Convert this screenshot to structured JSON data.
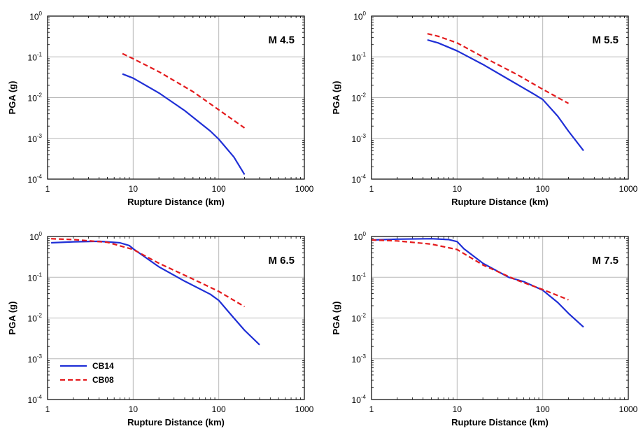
{
  "chart_data": [
    {
      "type": "line",
      "annotation": "M 4.5",
      "xlabel": "Rupture Distance (km)",
      "ylabel": "PGA (g)",
      "xscale": "log",
      "yscale": "log",
      "xlim": [
        1,
        1000
      ],
      "ylim": [
        0.0001,
        1
      ],
      "xticks": [
        "1",
        "10",
        "100",
        "1000"
      ],
      "yticks": [
        {
          "base": "10",
          "exp": "0"
        },
        {
          "base": "10",
          "exp": "-1"
        },
        {
          "base": "10",
          "exp": "-2"
        },
        {
          "base": "10",
          "exp": "-3"
        },
        {
          "base": "10",
          "exp": "-4"
        }
      ],
      "grid": true,
      "series": [
        {
          "name": "CB14",
          "color": "#1f2fd6",
          "style": "solid",
          "points": [
            [
              7.5,
              0.038
            ],
            [
              10,
              0.03
            ],
            [
              20,
              0.013
            ],
            [
              40,
              0.0048
            ],
            [
              80,
              0.0015
            ],
            [
              100,
              0.00095
            ],
            [
              150,
              0.00035
            ],
            [
              200,
              0.00013
            ]
          ]
        },
        {
          "name": "CB08",
          "color": "#e41a1c",
          "style": "dashed",
          "points": [
            [
              7.5,
              0.12
            ],
            [
              10,
              0.09
            ],
            [
              20,
              0.043
            ],
            [
              50,
              0.014
            ],
            [
              100,
              0.005
            ],
            [
              200,
              0.0018
            ]
          ]
        }
      ]
    },
    {
      "type": "line",
      "annotation": "M 5.5",
      "xlabel": "Rupture Distance (km)",
      "ylabel": "PGA (g)",
      "xscale": "log",
      "yscale": "log",
      "xlim": [
        1,
        1000
      ],
      "ylim": [
        0.0001,
        1
      ],
      "xticks": [
        "1",
        "10",
        "100",
        "1000"
      ],
      "yticks": [
        {
          "base": "10",
          "exp": "0"
        },
        {
          "base": "10",
          "exp": "-1"
        },
        {
          "base": "10",
          "exp": "-2"
        },
        {
          "base": "10",
          "exp": "-3"
        },
        {
          "base": "10",
          "exp": "-4"
        }
      ],
      "grid": true,
      "series": [
        {
          "name": "CB14",
          "color": "#1f2fd6",
          "style": "solid",
          "points": [
            [
              4.5,
              0.26
            ],
            [
              6,
              0.22
            ],
            [
              10,
              0.14
            ],
            [
              20,
              0.065
            ],
            [
              40,
              0.028
            ],
            [
              80,
              0.012
            ],
            [
              100,
              0.009
            ],
            [
              150,
              0.0035
            ],
            [
              200,
              0.0015
            ],
            [
              300,
              0.0005
            ]
          ]
        },
        {
          "name": "CB08",
          "color": "#e41a1c",
          "style": "dashed",
          "points": [
            [
              4.5,
              0.37
            ],
            [
              6,
              0.32
            ],
            [
              10,
              0.22
            ],
            [
              20,
              0.1
            ],
            [
              50,
              0.037
            ],
            [
              100,
              0.016
            ],
            [
              200,
              0.0072
            ]
          ]
        }
      ]
    },
    {
      "type": "line",
      "annotation": "M 6.5",
      "xlabel": "Rupture Distance (km)",
      "ylabel": "PGA (g)",
      "xscale": "log",
      "yscale": "log",
      "xlim": [
        1,
        1000
      ],
      "ylim": [
        0.0001,
        1
      ],
      "xticks": [
        "1",
        "10",
        "100",
        "1000"
      ],
      "yticks": [
        {
          "base": "10",
          "exp": "0"
        },
        {
          "base": "10",
          "exp": "-1"
        },
        {
          "base": "10",
          "exp": "-2"
        },
        {
          "base": "10",
          "exp": "-3"
        },
        {
          "base": "10",
          "exp": "-4"
        }
      ],
      "grid": true,
      "legend": {
        "placement": "bottom-left",
        "entries": [
          "CB14",
          "CB08"
        ]
      },
      "series": [
        {
          "name": "CB14",
          "color": "#1f2fd6",
          "style": "solid",
          "points": [
            [
              1.1,
              0.7
            ],
            [
              2,
              0.74
            ],
            [
              4,
              0.76
            ],
            [
              7,
              0.7
            ],
            [
              9,
              0.6
            ],
            [
              10,
              0.5
            ],
            [
              20,
              0.18
            ],
            [
              40,
              0.08
            ],
            [
              80,
              0.038
            ],
            [
              100,
              0.027
            ],
            [
              150,
              0.01
            ],
            [
              200,
              0.005
            ],
            [
              300,
              0.0022
            ]
          ]
        },
        {
          "name": "CB08",
          "color": "#e41a1c",
          "style": "dashed",
          "points": [
            [
              1.1,
              0.88
            ],
            [
              2,
              0.84
            ],
            [
              5,
              0.72
            ],
            [
              10,
              0.48
            ],
            [
              20,
              0.22
            ],
            [
              50,
              0.09
            ],
            [
              100,
              0.045
            ],
            [
              200,
              0.019
            ]
          ]
        }
      ]
    },
    {
      "type": "line",
      "annotation": "M 7.5",
      "xlabel": "Rupture Distance (km)",
      "ylabel": "PGA (g)",
      "xscale": "log",
      "yscale": "log",
      "xlim": [
        1,
        1000
      ],
      "ylim": [
        0.0001,
        1
      ],
      "xticks": [
        "1",
        "10",
        "100",
        "1000"
      ],
      "yticks": [
        {
          "base": "10",
          "exp": "0"
        },
        {
          "base": "10",
          "exp": "-1"
        },
        {
          "base": "10",
          "exp": "-2"
        },
        {
          "base": "10",
          "exp": "-3"
        },
        {
          "base": "10",
          "exp": "-4"
        }
      ],
      "grid": true,
      "series": [
        {
          "name": "CB14",
          "color": "#1f2fd6",
          "style": "solid",
          "points": [
            [
              1,
              0.82
            ],
            [
              2,
              0.86
            ],
            [
              5,
              0.88
            ],
            [
              8,
              0.84
            ],
            [
              10,
              0.75
            ],
            [
              12,
              0.5
            ],
            [
              20,
              0.22
            ],
            [
              40,
              0.1
            ],
            [
              60,
              0.078
            ],
            [
              100,
              0.048
            ],
            [
              150,
              0.024
            ],
            [
              200,
              0.013
            ],
            [
              300,
              0.006
            ]
          ]
        },
        {
          "name": "CB08",
          "color": "#e41a1c",
          "style": "dashed",
          "points": [
            [
              1,
              0.82
            ],
            [
              2,
              0.78
            ],
            [
              5,
              0.65
            ],
            [
              10,
              0.48
            ],
            [
              20,
              0.2
            ],
            [
              50,
              0.085
            ],
            [
              100,
              0.05
            ],
            [
              200,
              0.028
            ]
          ]
        }
      ]
    }
  ]
}
